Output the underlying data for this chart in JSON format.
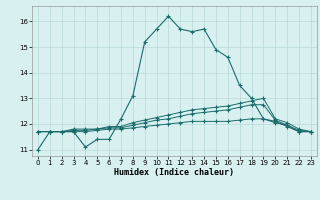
{
  "title": "",
  "xlabel": "Humidex (Indice chaleur)",
  "bg_color": "#d8f0f0",
  "grid_color": "#b8d8d8",
  "line_color": "#1a6b6b",
  "xlim": [
    -0.5,
    23.5
  ],
  "ylim": [
    10.75,
    16.6
  ],
  "yticks": [
    11,
    12,
    13,
    14,
    15,
    16
  ],
  "xticks": [
    0,
    1,
    2,
    3,
    4,
    5,
    6,
    7,
    8,
    9,
    10,
    11,
    12,
    13,
    14,
    15,
    16,
    17,
    18,
    19,
    20,
    21,
    22,
    23
  ],
  "series": {
    "main": [
      11.0,
      11.7,
      11.7,
      11.7,
      11.1,
      11.4,
      11.4,
      12.2,
      13.1,
      15.2,
      15.7,
      16.2,
      15.7,
      15.6,
      15.7,
      14.9,
      14.6,
      13.5,
      13.0,
      12.2,
      12.05,
      11.95,
      11.7,
      11.7
    ],
    "line2": [
      11.7,
      11.7,
      11.7,
      11.8,
      11.8,
      11.8,
      11.9,
      11.9,
      12.05,
      12.15,
      12.25,
      12.35,
      12.45,
      12.55,
      12.6,
      12.65,
      12.7,
      12.8,
      12.9,
      13.0,
      12.2,
      12.05,
      11.8,
      11.7
    ],
    "line3": [
      11.7,
      11.7,
      11.7,
      11.75,
      11.75,
      11.8,
      11.85,
      11.85,
      11.95,
      12.05,
      12.15,
      12.2,
      12.3,
      12.4,
      12.45,
      12.5,
      12.55,
      12.65,
      12.75,
      12.75,
      12.15,
      11.95,
      11.75,
      11.7
    ],
    "line4": [
      11.7,
      11.7,
      11.7,
      11.7,
      11.7,
      11.75,
      11.8,
      11.8,
      11.85,
      11.9,
      11.95,
      12.0,
      12.05,
      12.1,
      12.1,
      12.1,
      12.1,
      12.15,
      12.2,
      12.2,
      12.1,
      11.9,
      11.7,
      11.7
    ]
  }
}
